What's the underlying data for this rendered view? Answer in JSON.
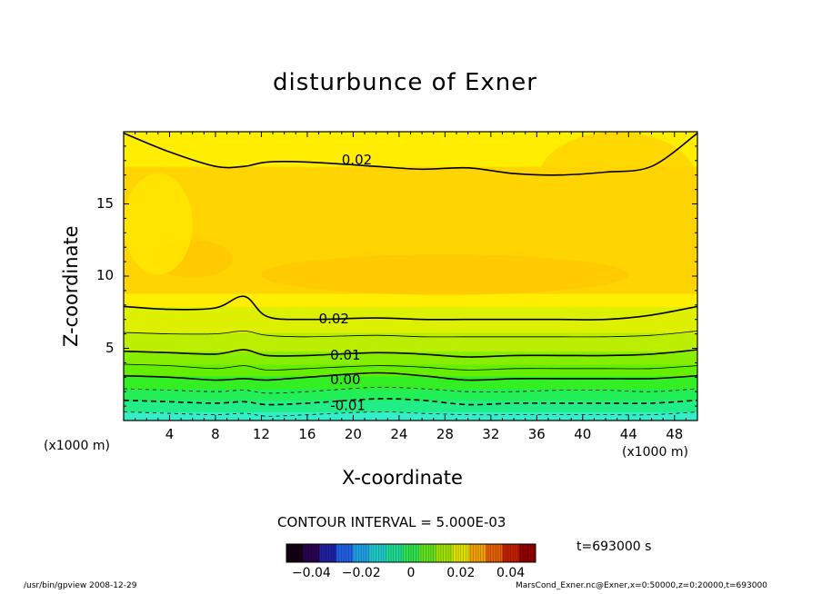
{
  "chart_data": {
    "type": "heatmap",
    "title": "disturbunce of Exner",
    "xlabel": "X-coordinate",
    "ylabel": "Z-coordinate",
    "xunit_left": "(x1000 m)",
    "xunit_right": "(x1000 m)",
    "xlim": [
      0,
      50
    ],
    "ylim": [
      0,
      20
    ],
    "xticks": [
      4,
      8,
      12,
      16,
      20,
      24,
      28,
      32,
      36,
      40,
      44,
      48
    ],
    "xtick_labels": [
      "4",
      "8",
      "12",
      "16",
      "20",
      "24",
      "28",
      "32",
      "36",
      "40",
      "44",
      "48"
    ],
    "yticks": [
      5,
      10,
      15
    ],
    "ytick_labels": [
      "5",
      "10",
      "15"
    ],
    "contour_interval": "CONTOUR INTERVAL = 5.000E-03",
    "contour_labels": [
      {
        "text": "0.02",
        "x": 19,
        "z": 18.1
      },
      {
        "text": "0.02",
        "x": 17,
        "z": 7.1
      },
      {
        "text": "0.01",
        "x": 18,
        "z": 4.6
      },
      {
        "text": "0.00",
        "x": 18,
        "z": 2.9
      },
      {
        "text": "-0.01",
        "x": 18,
        "z": 1.1
      }
    ],
    "contour_levels": [
      {
        "level": 0.02,
        "style": "solid-thick",
        "z": [
          19.9,
          18.6,
          17.6,
          17.6,
          17.9,
          17.9,
          17.6,
          17.4,
          17.5,
          17.1,
          17.0,
          17.2,
          17.6,
          19.9
        ]
      },
      {
        "level": 0.02,
        "style": "solid-thick",
        "z": [
          7.9,
          7.7,
          7.8,
          8.6,
          7.2,
          7.0,
          7.1,
          7.0,
          7.0,
          7.0,
          7.0,
          7.0,
          7.3,
          7.9
        ]
      },
      {
        "level": 0.015,
        "style": "solid-thin",
        "z": [
          6.1,
          6.0,
          6.0,
          6.2,
          5.9,
          5.8,
          5.9,
          5.8,
          5.8,
          5.8,
          5.8,
          5.8,
          5.9,
          6.2
        ]
      },
      {
        "level": 0.01,
        "style": "solid-thick",
        "z": [
          4.8,
          4.7,
          4.6,
          4.9,
          4.5,
          4.5,
          4.7,
          4.6,
          4.4,
          4.5,
          4.5,
          4.5,
          4.6,
          4.9
        ]
      },
      {
        "level": 0.005,
        "style": "solid-thin",
        "z": [
          3.9,
          3.8,
          3.6,
          3.8,
          3.5,
          3.6,
          3.8,
          3.7,
          3.5,
          3.6,
          3.6,
          3.6,
          3.6,
          3.8
        ]
      },
      {
        "level": 0.0,
        "style": "solid-thick",
        "z": [
          3.1,
          3.0,
          2.8,
          2.9,
          2.8,
          3.0,
          3.3,
          3.1,
          2.8,
          2.9,
          2.9,
          2.9,
          2.9,
          3.1
        ]
      },
      {
        "level": -0.005,
        "style": "dashed-thin",
        "z": [
          2.2,
          2.1,
          2.0,
          2.1,
          1.9,
          2.0,
          2.3,
          2.2,
          2.0,
          2.0,
          2.1,
          2.1,
          2.0,
          2.2
        ]
      },
      {
        "level": -0.01,
        "style": "dashed-thick",
        "z": [
          1.4,
          1.3,
          1.2,
          1.3,
          1.1,
          1.2,
          1.5,
          1.4,
          1.1,
          1.2,
          1.2,
          1.2,
          1.2,
          1.4
        ]
      },
      {
        "level": -0.015,
        "style": "dashed-thin",
        "z": [
          0.6,
          0.5,
          0.4,
          0.5,
          0.3,
          0.4,
          0.6,
          0.5,
          0.4,
          0.4,
          0.4,
          0.4,
          0.4,
          0.6
        ]
      }
    ],
    "contour_x": [
      0,
      4,
      8,
      10.5,
      12.5,
      16,
      22,
      26,
      30,
      34,
      38,
      42,
      46,
      50
    ],
    "fill_bands": [
      {
        "zmin": 0.0,
        "zmax": 0.6,
        "color": "#33eec8"
      },
      {
        "zmin": 0.6,
        "zmax": 1.4,
        "color": "#22ee88"
      },
      {
        "zmin": 1.4,
        "zmax": 2.2,
        "color": "#22ee55"
      },
      {
        "zmin": 2.2,
        "zmax": 3.1,
        "color": "#33ee22"
      },
      {
        "zmin": 3.1,
        "zmax": 3.9,
        "color": "#66ee00"
      },
      {
        "zmin": 3.9,
        "zmax": 4.8,
        "color": "#88ee00"
      },
      {
        "zmin": 4.8,
        "zmax": 6.1,
        "color": "#bbee00"
      },
      {
        "zmin": 6.1,
        "zmax": 7.9,
        "color": "#ddf000"
      },
      {
        "zmin": 7.9,
        "zmax": 8.8,
        "color": "#ffee00"
      },
      {
        "zmin": 8.8,
        "zmax": 17.6,
        "color": "#ffd400"
      },
      {
        "zmin": 17.6,
        "zmax": 20.0,
        "color": "#ffee00"
      }
    ],
    "patches": [
      {
        "x": 6,
        "z": 11.2,
        "rx": 3.5,
        "rz": 1.3,
        "color": "#ffc800"
      },
      {
        "x": 28,
        "z": 10.1,
        "rx": 16,
        "rz": 1.4,
        "color": "#ffc800"
      },
      {
        "x": 3,
        "z": 13.6,
        "rx": 3,
        "rz": 3.5,
        "color": "#ffe600"
      },
      {
        "x": 43,
        "z": 16.5,
        "rx": 7,
        "rz": 3.5,
        "color": "#ffd400"
      }
    ],
    "colorbar": {
      "min": -0.05,
      "max": 0.05,
      "ticks": [
        -0.04,
        -0.02,
        0,
        0.02,
        0.04
      ],
      "tick_labels": [
        "−0.04",
        "−0.02",
        "0",
        "0.02",
        "0.04"
      ],
      "colors": [
        "#140014",
        "#2a0050",
        "#2020a0",
        "#2060e0",
        "#20a0e0",
        "#20c8c8",
        "#20d890",
        "#30e050",
        "#60e020",
        "#a0e000",
        "#e0e000",
        "#f0a000",
        "#e06000",
        "#c02000",
        "#900000"
      ]
    }
  },
  "time_label": "t=693000 s",
  "footer": {
    "left": "/usr/bin/gpview   2008-12-29",
    "right": "MarsCond_Exner.nc@Exner,x=0:50000,z=0:20000,t=693000"
  }
}
